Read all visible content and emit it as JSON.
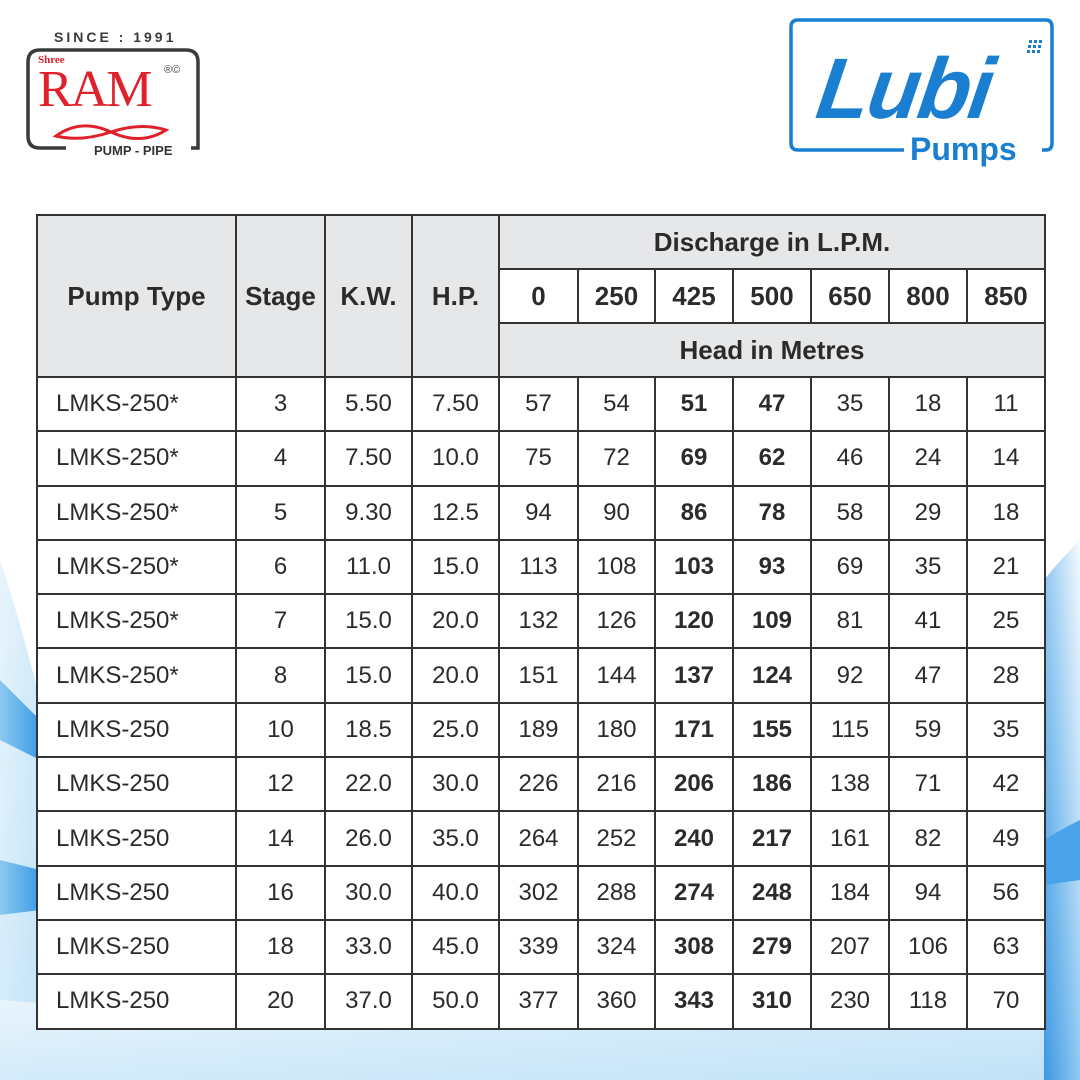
{
  "brand_left": {
    "since": "SINCE : 1991",
    "prefix": "Shree",
    "name": "RAM",
    "reg_mark": "®©",
    "tagline": "PUMP - PIPE",
    "color": "#e0202a"
  },
  "brand_right": {
    "name": "Lubi",
    "tagline": "Pumps",
    "color": "#1a7fd0"
  },
  "table": {
    "headers": {
      "pump_type": "Pump Type",
      "stage": "Stage",
      "kw": "K.W.",
      "hp": "H.P.",
      "discharge_group": "Discharge in L.P.M.",
      "head_group": "Head in Metres",
      "discharge_values": [
        "0",
        "250",
        "425",
        "500",
        "650",
        "800",
        "850"
      ]
    },
    "bold_columns": [
      2,
      3
    ],
    "rows": [
      {
        "type": "LMKS-250*",
        "stage": "3",
        "kw": "5.50",
        "hp": "7.50",
        "head": [
          "57",
          "54",
          "51",
          "47",
          "35",
          "18",
          "11"
        ]
      },
      {
        "type": "LMKS-250*",
        "stage": "4",
        "kw": "7.50",
        "hp": "10.0",
        "head": [
          "75",
          "72",
          "69",
          "62",
          "46",
          "24",
          "14"
        ]
      },
      {
        "type": "LMKS-250*",
        "stage": "5",
        "kw": "9.30",
        "hp": "12.5",
        "head": [
          "94",
          "90",
          "86",
          "78",
          "58",
          "29",
          "18"
        ]
      },
      {
        "type": "LMKS-250*",
        "stage": "6",
        "kw": "11.0",
        "hp": "15.0",
        "head": [
          "113",
          "108",
          "103",
          "93",
          "69",
          "35",
          "21"
        ]
      },
      {
        "type": "LMKS-250*",
        "stage": "7",
        "kw": "15.0",
        "hp": "20.0",
        "head": [
          "132",
          "126",
          "120",
          "109",
          "81",
          "41",
          "25"
        ]
      },
      {
        "type": "LMKS-250*",
        "stage": "8",
        "kw": "15.0",
        "hp": "20.0",
        "head": [
          "151",
          "144",
          "137",
          "124",
          "92",
          "47",
          "28"
        ]
      },
      {
        "type": "LMKS-250",
        "stage": "10",
        "kw": "18.5",
        "hp": "25.0",
        "head": [
          "189",
          "180",
          "171",
          "155",
          "115",
          "59",
          "35"
        ]
      },
      {
        "type": "LMKS-250",
        "stage": "12",
        "kw": "22.0",
        "hp": "30.0",
        "head": [
          "226",
          "216",
          "206",
          "186",
          "138",
          "71",
          "42"
        ]
      },
      {
        "type": "LMKS-250",
        "stage": "14",
        "kw": "26.0",
        "hp": "35.0",
        "head": [
          "264",
          "252",
          "240",
          "217",
          "161",
          "82",
          "49"
        ]
      },
      {
        "type": "LMKS-250",
        "stage": "16",
        "kw": "30.0",
        "hp": "40.0",
        "head": [
          "302",
          "288",
          "274",
          "248",
          "184",
          "94",
          "56"
        ]
      },
      {
        "type": "LMKS-250",
        "stage": "18",
        "kw": "33.0",
        "hp": "45.0",
        "head": [
          "339",
          "324",
          "308",
          "279",
          "207",
          "106",
          "63"
        ]
      },
      {
        "type": "LMKS-250",
        "stage": "20",
        "kw": "37.0",
        "hp": "50.0",
        "head": [
          "377",
          "360",
          "343",
          "310",
          "230",
          "118",
          "70"
        ]
      }
    ]
  }
}
